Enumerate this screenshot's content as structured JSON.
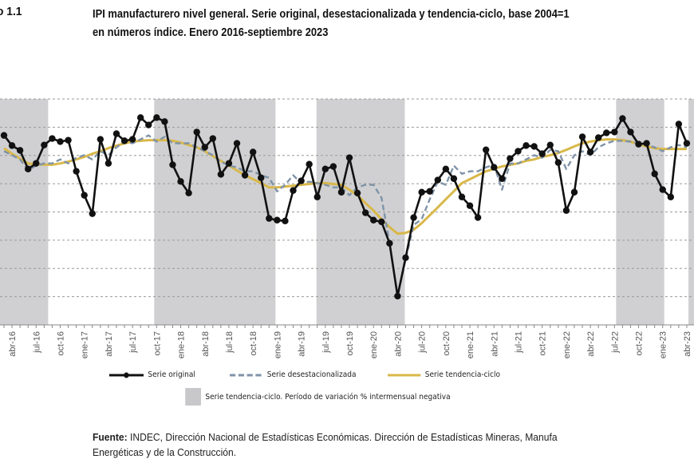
{
  "figure": {
    "number_label": "o 1.1",
    "title_line1": "IPI manufacturero nivel general. Serie original, desestacionalizada y tendencia-ciclo, base 2004=1",
    "title_line2": "en números índice. Enero 2016-septiembre 2023"
  },
  "legend": {
    "original": "Serie original",
    "deseasonalized": "Serie desestacionalizada",
    "trend": "Serie tendencia-ciclo",
    "shaded": "Serie tendencia-ciclo. Período de variación % intermensual negativa"
  },
  "source": {
    "label": "Fuente:",
    "line1": " INDEC, Dirección Nacional de Estadísticas Económicas. Dirección de Estadísticas Mineras, Manufa",
    "line2": "Energéticas y de la Construcción."
  },
  "colors": {
    "original": "#111111",
    "deseasonalized": "#7f93a8",
    "trend": "#d9b84a",
    "shade": "#d0d0d2",
    "grid": "#9a9a9a"
  },
  "chart_data": {
    "type": "line",
    "title": "IPI manufacturero nivel general. Serie original, desestacionalizada y tendencia-ciclo, base 2004=100, en números índice. Enero 2016-septiembre 2023",
    "xlabel": "",
    "ylabel": "",
    "ylim": [
      70,
      150
    ],
    "y_tick_labels_visible": false,
    "grid": true,
    "legend_position": "bottom",
    "x_first_month": "mar-16",
    "x_tick_labels": [
      "abr-16",
      "jul-16",
      "oct-16",
      "ene-17",
      "abr-17",
      "jul-17",
      "oct-17",
      "ene-18",
      "abr-18",
      "jul-18",
      "oct-18",
      "ene-19",
      "abr-19",
      "jul-19",
      "oct-19",
      "ene-20",
      "abr-20",
      "jul-20",
      "oct-20",
      "ene-21",
      "abr-21",
      "jul-21",
      "oct-21",
      "ene-22",
      "abr-22",
      "jul-22",
      "oct-22",
      "ene-23",
      "abr-23"
    ],
    "x_tick_month_index": [
      1,
      4,
      7,
      10,
      13,
      16,
      19,
      22,
      25,
      28,
      31,
      34,
      37,
      40,
      43,
      46,
      49,
      52,
      55,
      58,
      61,
      64,
      67,
      70,
      73,
      76,
      79,
      82,
      85
    ],
    "series": [
      {
        "name": "Serie original",
        "style": "line-with-markers",
        "values": [
          137.1,
          133.5,
          131.8,
          125.2,
          127.2,
          133.7,
          136.0,
          134.9,
          135.4,
          124.4,
          115.9,
          109.4,
          135.7,
          127.2,
          137.7,
          135.2,
          135.7,
          143.4,
          140.8,
          143.4,
          142.0,
          126.7,
          120.8,
          116.7,
          138.3,
          132.9,
          136.0,
          123.3,
          127.2,
          134.3,
          123.0,
          131.2,
          122.1,
          107.7,
          107.1,
          106.8,
          117.6,
          121.0,
          126.9,
          115.3,
          125.2,
          126.1,
          117.0,
          129.2,
          116.7,
          109.7,
          107.1,
          106.5,
          98.9,
          80.2,
          93.8,
          108.0,
          117.0,
          117.3,
          121.3,
          125.2,
          121.8,
          115.3,
          112.2,
          108.0,
          132.0,
          125.8,
          121.8,
          128.9,
          131.5,
          133.5,
          133.2,
          130.6,
          133.7,
          127.5,
          110.5,
          117.0,
          136.6,
          131.2,
          136.3,
          138.0,
          138.3,
          143.1,
          138.3,
          134.0,
          134.3,
          123.5,
          117.9,
          115.3,
          141.1,
          134.3
        ]
      },
      {
        "name": "Serie desestacionalizada",
        "style": "dashed",
        "values": [
          131.5,
          130.1,
          128.6,
          124.9,
          126.4,
          127.2,
          127.2,
          128.6,
          127.2,
          129.2,
          130.1,
          128.6,
          131.5,
          130.1,
          132.9,
          134.9,
          134.3,
          135.7,
          137.1,
          134.9,
          136.6,
          134.3,
          134.3,
          134.3,
          132.9,
          131.5,
          130.1,
          127.8,
          126.4,
          125.8,
          124.4,
          124.4,
          123.0,
          122.1,
          117.3,
          119.6,
          123.0,
          120.2,
          120.7,
          120.2,
          119.6,
          118.7,
          118.7,
          115.9,
          118.7,
          119.6,
          119.6,
          115.0,
          98.9,
          80.2,
          93.2,
          105.4,
          107.4,
          114.5,
          120.7,
          119.6,
          126.4,
          123.5,
          124.4,
          124.4,
          125.8,
          126.7,
          117.9,
          127.2,
          127.2,
          128.6,
          130.1,
          129.2,
          132.0,
          131.5,
          125.2,
          130.1,
          131.5,
          130.1,
          132.9,
          134.3,
          135.2,
          135.2,
          134.9,
          134.3,
          133.7,
          132.9,
          131.5,
          132.9,
          133.7,
          132.9
        ]
      },
      {
        "name": "Serie tendencia-ciclo",
        "style": "solid",
        "values": [
          132.6,
          130.6,
          128.9,
          127.2,
          126.9,
          126.7,
          126.7,
          127.2,
          127.8,
          128.6,
          129.5,
          130.6,
          131.5,
          132.6,
          133.5,
          134.3,
          134.9,
          135.2,
          135.4,
          135.4,
          135.4,
          135.2,
          134.6,
          133.7,
          132.9,
          131.5,
          129.8,
          128.1,
          126.4,
          124.7,
          123.0,
          121.6,
          120.2,
          118.7,
          118.7,
          119.0,
          119.3,
          119.6,
          119.9,
          120.2,
          120.2,
          119.9,
          119.6,
          117.9,
          115.9,
          113.1,
          110.5,
          107.4,
          104.6,
          102.3,
          102.6,
          103.7,
          106.0,
          108.8,
          111.6,
          114.5,
          117.3,
          120.2,
          121.6,
          123.0,
          124.4,
          125.2,
          126.1,
          126.7,
          127.2,
          128.1,
          128.6,
          129.5,
          130.1,
          130.9,
          132.0,
          133.2,
          134.3,
          134.9,
          135.4,
          135.7,
          135.7,
          135.4,
          134.9,
          134.0,
          133.2,
          132.6,
          132.3,
          132.3,
          132.3,
          132.3
        ]
      }
    ],
    "shaded_periods_month_index": [
      [
        -3,
        5.5
      ],
      [
        18.7,
        33.8
      ],
      [
        38.9,
        49.9
      ],
      [
        76.2,
        82.2
      ],
      [
        85.2,
        88
      ]
    ]
  }
}
